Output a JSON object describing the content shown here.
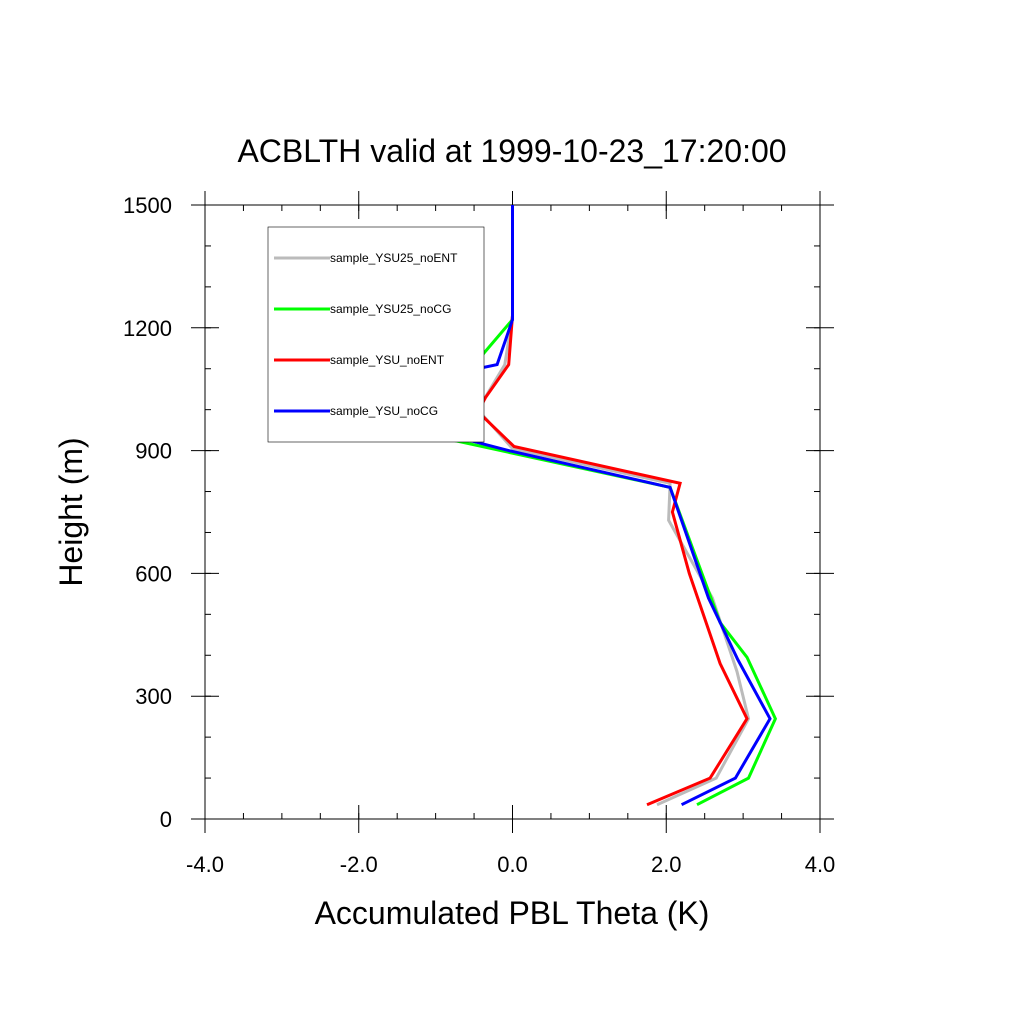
{
  "chart_data": {
    "type": "line",
    "title": "ACBLTH valid at 1999-10-23_17:20:00",
    "xlabel": "Accumulated PBL Theta (K)",
    "ylabel": "Height (m)",
    "xlim": [
      -4.0,
      4.0
    ],
    "ylim": [
      0,
      1500
    ],
    "x_ticks": [
      -4.0,
      -2.0,
      0.0,
      2.0,
      4.0
    ],
    "x_tick_labels": [
      "-4.0",
      "-2.0",
      "0.0",
      "2.0",
      "4.0"
    ],
    "x_minor_step": 0.5,
    "y_ticks": [
      0,
      300,
      600,
      900,
      1200,
      1500
    ],
    "y_tick_labels": [
      "0",
      "300",
      "600",
      "900",
      "1200",
      "1500"
    ],
    "y_minor_step": 100,
    "grid": false,
    "legend_position": "top-left",
    "series": [
      {
        "name": "sample_YSU25_noENT",
        "color": "#bbbbbb",
        "points": [
          [
            1.88,
            35
          ],
          [
            2.65,
            100
          ],
          [
            3.07,
            245
          ],
          [
            2.92,
            360
          ],
          [
            2.6,
            540
          ],
          [
            2.03,
            730
          ],
          [
            2.05,
            820
          ],
          [
            0.0,
            905
          ],
          [
            -0.45,
            1000
          ],
          [
            -0.1,
            1110
          ],
          [
            0.0,
            1230
          ],
          [
            0.0,
            1500
          ]
        ]
      },
      {
        "name": "sample_YSU25_noCG",
        "color": "#00ff00",
        "points": [
          [
            2.4,
            35
          ],
          [
            3.07,
            100
          ],
          [
            3.42,
            245
          ],
          [
            3.05,
            395
          ],
          [
            2.7,
            480
          ],
          [
            2.05,
            810
          ],
          [
            -2.6,
            1000
          ],
          [
            -3.05,
            1010
          ],
          [
            -0.5,
            1110
          ],
          [
            0.0,
            1220
          ],
          [
            0.0,
            1500
          ]
        ]
      },
      {
        "name": "sample_YSU_noENT",
        "color": "#ff0000",
        "points": [
          [
            1.75,
            35
          ],
          [
            2.57,
            100
          ],
          [
            3.05,
            245
          ],
          [
            2.7,
            380
          ],
          [
            2.3,
            600
          ],
          [
            2.08,
            750
          ],
          [
            2.18,
            820
          ],
          [
            0.02,
            910
          ],
          [
            -0.45,
            995
          ],
          [
            -0.35,
            1030
          ],
          [
            -0.05,
            1110
          ],
          [
            0.0,
            1230
          ],
          [
            0.0,
            1500
          ]
        ]
      },
      {
        "name": "sample_YSU_noCG",
        "color": "#0000ff",
        "points": [
          [
            2.2,
            35
          ],
          [
            2.9,
            100
          ],
          [
            3.35,
            245
          ],
          [
            2.93,
            390
          ],
          [
            2.55,
            540
          ],
          [
            2.05,
            810
          ],
          [
            -0.05,
            900
          ],
          [
            -2.3,
            1010
          ],
          [
            -3.0,
            1000
          ],
          [
            -0.2,
            1110
          ],
          [
            0.0,
            1220
          ],
          [
            0.0,
            1500
          ]
        ]
      }
    ]
  }
}
